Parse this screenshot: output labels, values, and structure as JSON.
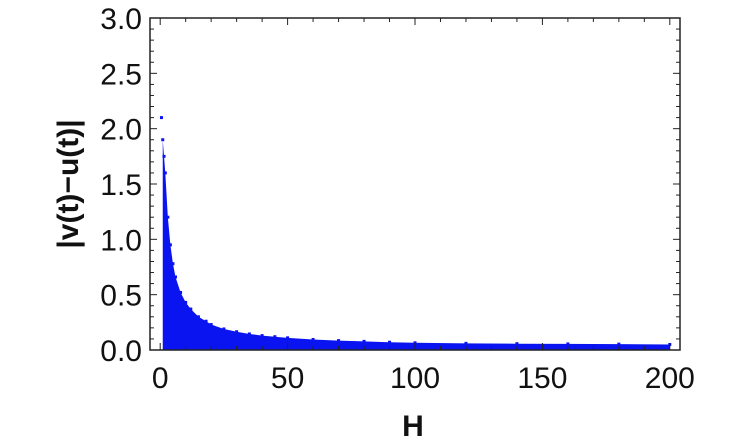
{
  "chart_data": {
    "type": "area",
    "title": "",
    "xlabel": "H",
    "ylabel": "|v(t)−u(t)|",
    "xlim": [
      -4,
      204
    ],
    "ylim": [
      0,
      3.0
    ],
    "xticks": [
      "0",
      "50",
      "100",
      "150",
      "200"
    ],
    "yticks": [
      "0.0",
      "0.5",
      "1.0",
      "1.5",
      "2.0",
      "2.5",
      "3.0"
    ],
    "grid": false,
    "color": "#0a14f0",
    "series": [
      {
        "x": [
          0.5,
          1,
          1.5,
          2,
          3,
          4,
          5,
          6,
          8,
          10,
          12,
          15,
          18,
          20,
          25,
          30,
          35,
          40,
          45,
          50,
          60,
          70,
          80,
          90,
          100,
          120,
          140,
          160,
          180,
          200
        ],
        "y": [
          2.1,
          1.9,
          1.75,
          1.6,
          1.2,
          0.95,
          0.78,
          0.66,
          0.52,
          0.43,
          0.37,
          0.3,
          0.26,
          0.23,
          0.19,
          0.165,
          0.145,
          0.13,
          0.12,
          0.11,
          0.095,
          0.085,
          0.078,
          0.07,
          0.065,
          0.06,
          0.057,
          0.055,
          0.053,
          0.05
        ]
      }
    ]
  }
}
